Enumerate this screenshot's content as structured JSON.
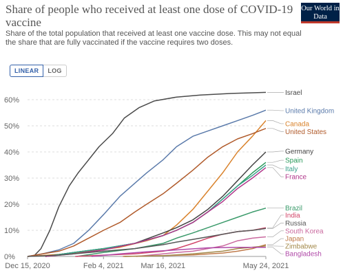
{
  "header": {
    "title": "Share of people who received at least one dose of COVID-19 vaccine",
    "subtitle": "Share of the total population that received at least one vaccine dose. This may not equal the share that are fully vaccinated if the vaccine requires two doses.",
    "logo_text": "Our World in Data",
    "logo_color": "#002147"
  },
  "controls": {
    "linear_label": "LINEAR",
    "log_label": "LOG",
    "active": "LINEAR"
  },
  "chart_data": {
    "type": "line",
    "ylim": [
      0,
      65
    ],
    "yticks": [
      0,
      10,
      20,
      30,
      40,
      50,
      60
    ],
    "ytick_labels": [
      "0%",
      "10%",
      "20%",
      "30%",
      "40%",
      "50%",
      "60%"
    ],
    "xlim": [
      "2020-12-15",
      "2021-05-24"
    ],
    "xticks": [
      {
        "date": "2020-12-15",
        "label": "Dec 15, 2020"
      },
      {
        "date": "2021-02-04",
        "label": "Feb 4, 2021"
      },
      {
        "date": "2021-03-16",
        "label": "Mar 16, 2021"
      },
      {
        "date": "2021-05-24",
        "label": "May 24, 2021"
      }
    ],
    "grid": true,
    "series": [
      {
        "name": "Israel",
        "color": "#4a4a4a",
        "label_y": 62.8,
        "points": [
          [
            "2020-12-19",
            0
          ],
          [
            "2020-12-24",
            3
          ],
          [
            "2020-12-30",
            10
          ],
          [
            "2021-01-05",
            19
          ],
          [
            "2021-01-12",
            27
          ],
          [
            "2021-01-18",
            32
          ],
          [
            "2021-01-25",
            37
          ],
          [
            "2021-02-01",
            42
          ],
          [
            "2021-02-10",
            47
          ],
          [
            "2021-02-18",
            53
          ],
          [
            "2021-02-28",
            57
          ],
          [
            "2021-03-10",
            59.5
          ],
          [
            "2021-03-25",
            61
          ],
          [
            "2021-04-10",
            61.8
          ],
          [
            "2021-05-01",
            62.4
          ],
          [
            "2021-05-24",
            62.8
          ]
        ]
      },
      {
        "name": "United Kingdom",
        "color": "#5a7aaa",
        "label_y": 55.8,
        "points": [
          [
            "2020-12-15",
            0
          ],
          [
            "2020-12-25",
            1
          ],
          [
            "2021-01-05",
            2.5
          ],
          [
            "2021-01-15",
            5
          ],
          [
            "2021-01-25",
            10
          ],
          [
            "2021-02-04",
            16
          ],
          [
            "2021-02-15",
            23
          ],
          [
            "2021-02-25",
            28
          ],
          [
            "2021-03-05",
            32
          ],
          [
            "2021-03-16",
            37
          ],
          [
            "2021-03-25",
            42
          ],
          [
            "2021-04-05",
            46
          ],
          [
            "2021-04-15",
            48
          ],
          [
            "2021-04-25",
            50
          ],
          [
            "2021-05-05",
            52
          ],
          [
            "2021-05-15",
            54
          ],
          [
            "2021-05-24",
            56
          ]
        ]
      },
      {
        "name": "Canada",
        "color": "#d9822b",
        "label_y": 50.8,
        "points": [
          [
            "2020-12-15",
            0
          ],
          [
            "2021-01-05",
            0.8
          ],
          [
            "2021-01-25",
            2
          ],
          [
            "2021-02-15",
            3.5
          ],
          [
            "2021-03-05",
            6
          ],
          [
            "2021-03-16",
            8
          ],
          [
            "2021-03-25",
            12
          ],
          [
            "2021-04-05",
            18
          ],
          [
            "2021-04-15",
            25
          ],
          [
            "2021-04-25",
            32
          ],
          [
            "2021-05-05",
            40
          ],
          [
            "2021-05-15",
            46
          ],
          [
            "2021-05-24",
            52
          ]
        ]
      },
      {
        "name": "United States",
        "color": "#b05a2a",
        "label_y": 47.8,
        "points": [
          [
            "2020-12-15",
            0
          ],
          [
            "2020-12-25",
            1
          ],
          [
            "2021-01-05",
            2
          ],
          [
            "2021-01-15",
            4
          ],
          [
            "2021-01-25",
            7
          ],
          [
            "2021-02-04",
            10
          ],
          [
            "2021-02-15",
            13
          ],
          [
            "2021-02-25",
            17
          ],
          [
            "2021-03-05",
            20
          ],
          [
            "2021-03-16",
            24
          ],
          [
            "2021-03-25",
            28
          ],
          [
            "2021-04-05",
            33
          ],
          [
            "2021-04-15",
            38
          ],
          [
            "2021-04-25",
            42
          ],
          [
            "2021-05-05",
            45
          ],
          [
            "2021-05-15",
            47
          ],
          [
            "2021-05-24",
            49
          ]
        ]
      },
      {
        "name": "Germany",
        "color": "#444444",
        "label_y": 40.3,
        "points": [
          [
            "2020-12-27",
            0
          ],
          [
            "2021-01-15",
            1.5
          ],
          [
            "2021-02-04",
            3
          ],
          [
            "2021-02-25",
            5
          ],
          [
            "2021-03-16",
            9
          ],
          [
            "2021-03-25",
            11
          ],
          [
            "2021-04-05",
            14
          ],
          [
            "2021-04-15",
            18
          ],
          [
            "2021-04-25",
            23
          ],
          [
            "2021-05-05",
            29
          ],
          [
            "2021-05-15",
            35
          ],
          [
            "2021-05-24",
            40
          ]
        ]
      },
      {
        "name": "Spain",
        "color": "#2a9a5a",
        "label_y": 36.8,
        "points": [
          [
            "2020-12-27",
            0
          ],
          [
            "2021-01-15",
            1.5
          ],
          [
            "2021-02-04",
            3
          ],
          [
            "2021-02-25",
            5
          ],
          [
            "2021-03-16",
            8
          ],
          [
            "2021-03-25",
            10
          ],
          [
            "2021-04-05",
            13
          ],
          [
            "2021-04-15",
            17
          ],
          [
            "2021-04-25",
            22
          ],
          [
            "2021-05-05",
            27
          ],
          [
            "2021-05-15",
            32
          ],
          [
            "2021-05-24",
            36
          ]
        ]
      },
      {
        "name": "Italy",
        "color": "#3aa18a",
        "label_y": 33.5,
        "points": [
          [
            "2020-12-27",
            0
          ],
          [
            "2021-01-15",
            1.5
          ],
          [
            "2021-02-04",
            3
          ],
          [
            "2021-02-25",
            5
          ],
          [
            "2021-03-16",
            8
          ],
          [
            "2021-03-25",
            10
          ],
          [
            "2021-04-05",
            13
          ],
          [
            "2021-04-15",
            17
          ],
          [
            "2021-04-25",
            22
          ],
          [
            "2021-05-05",
            27
          ],
          [
            "2021-05-15",
            31
          ],
          [
            "2021-05-24",
            35
          ]
        ]
      },
      {
        "name": "France",
        "color": "#b0368a",
        "label_y": 30.5,
        "points": [
          [
            "2020-12-27",
            0
          ],
          [
            "2021-01-15",
            1
          ],
          [
            "2021-02-04",
            2.5
          ],
          [
            "2021-02-25",
            5
          ],
          [
            "2021-03-16",
            8
          ],
          [
            "2021-03-25",
            10
          ],
          [
            "2021-04-05",
            13
          ],
          [
            "2021-04-15",
            17
          ],
          [
            "2021-04-25",
            21
          ],
          [
            "2021-05-05",
            26
          ],
          [
            "2021-05-15",
            30
          ],
          [
            "2021-05-24",
            34
          ]
        ]
      },
      {
        "name": "Brazil",
        "color": "#3a9a6a",
        "label_y": 18.5,
        "points": [
          [
            "2021-01-17",
            0
          ],
          [
            "2021-02-04",
            1.5
          ],
          [
            "2021-02-25",
            3
          ],
          [
            "2021-03-16",
            5
          ],
          [
            "2021-03-25",
            7
          ],
          [
            "2021-04-05",
            9
          ],
          [
            "2021-04-15",
            11
          ],
          [
            "2021-04-25",
            13
          ],
          [
            "2021-05-05",
            15
          ],
          [
            "2021-05-15",
            17
          ],
          [
            "2021-05-24",
            18.5
          ]
        ]
      },
      {
        "name": "India",
        "color": "#d2476a",
        "label_y": 15.8,
        "points": [
          [
            "2021-01-16",
            0
          ],
          [
            "2021-02-04",
            0.5
          ],
          [
            "2021-02-25",
            1
          ],
          [
            "2021-03-16",
            2
          ],
          [
            "2021-03-25",
            3
          ],
          [
            "2021-04-05",
            5
          ],
          [
            "2021-04-15",
            7
          ],
          [
            "2021-04-25",
            8.5
          ],
          [
            "2021-05-05",
            9.5
          ],
          [
            "2021-05-15",
            10
          ],
          [
            "2021-05-24",
            11
          ]
        ]
      },
      {
        "name": "Russia",
        "color": "#555555",
        "label_y": 12.8,
        "points": [
          [
            "2020-12-15",
            0
          ],
          [
            "2021-01-05",
            0.5
          ],
          [
            "2021-02-04",
            2
          ],
          [
            "2021-02-25",
            3
          ],
          [
            "2021-03-16",
            4.5
          ],
          [
            "2021-03-25",
            5.5
          ],
          [
            "2021-04-05",
            6.5
          ],
          [
            "2021-04-15",
            7.5
          ],
          [
            "2021-04-25",
            8.5
          ],
          [
            "2021-05-05",
            9.5
          ],
          [
            "2021-05-15",
            10
          ],
          [
            "2021-05-24",
            10.7
          ]
        ]
      },
      {
        "name": "South Korea",
        "color": "#c9689e",
        "label_y": 9.8,
        "points": [
          [
            "2021-02-26",
            0
          ],
          [
            "2021-03-16",
            1
          ],
          [
            "2021-03-25",
            1.5
          ],
          [
            "2021-04-05",
            2
          ],
          [
            "2021-04-15",
            3
          ],
          [
            "2021-04-25",
            4
          ],
          [
            "2021-05-05",
            6
          ],
          [
            "2021-05-15",
            7
          ],
          [
            "2021-05-24",
            7.5
          ]
        ]
      },
      {
        "name": "Japan",
        "color": "#c07a4a",
        "label_y": 6.8,
        "points": [
          [
            "2021-02-17",
            0
          ],
          [
            "2021-03-16",
            0.3
          ],
          [
            "2021-04-05",
            0.6
          ],
          [
            "2021-04-25",
            1.3
          ],
          [
            "2021-05-05",
            2
          ],
          [
            "2021-05-15",
            3
          ],
          [
            "2021-05-24",
            4.5
          ]
        ]
      },
      {
        "name": "Zimbabwe",
        "color": "#a3894a",
        "label_y": 3.9,
        "points": [
          [
            "2021-02-18",
            0
          ],
          [
            "2021-03-16",
            0.3
          ],
          [
            "2021-04-05",
            1
          ],
          [
            "2021-04-25",
            2
          ],
          [
            "2021-05-05",
            3
          ],
          [
            "2021-05-24",
            4
          ]
        ]
      },
      {
        "name": "Bangladesh",
        "color": "#b04aa8",
        "label_y": 1.0,
        "points": [
          [
            "2021-01-27",
            0
          ],
          [
            "2021-02-15",
            1
          ],
          [
            "2021-03-05",
            1.8
          ],
          [
            "2021-03-25",
            2.5
          ],
          [
            "2021-04-15",
            3.3
          ],
          [
            "2021-05-05",
            3.5
          ],
          [
            "2021-05-24",
            3.5
          ]
        ]
      }
    ]
  }
}
